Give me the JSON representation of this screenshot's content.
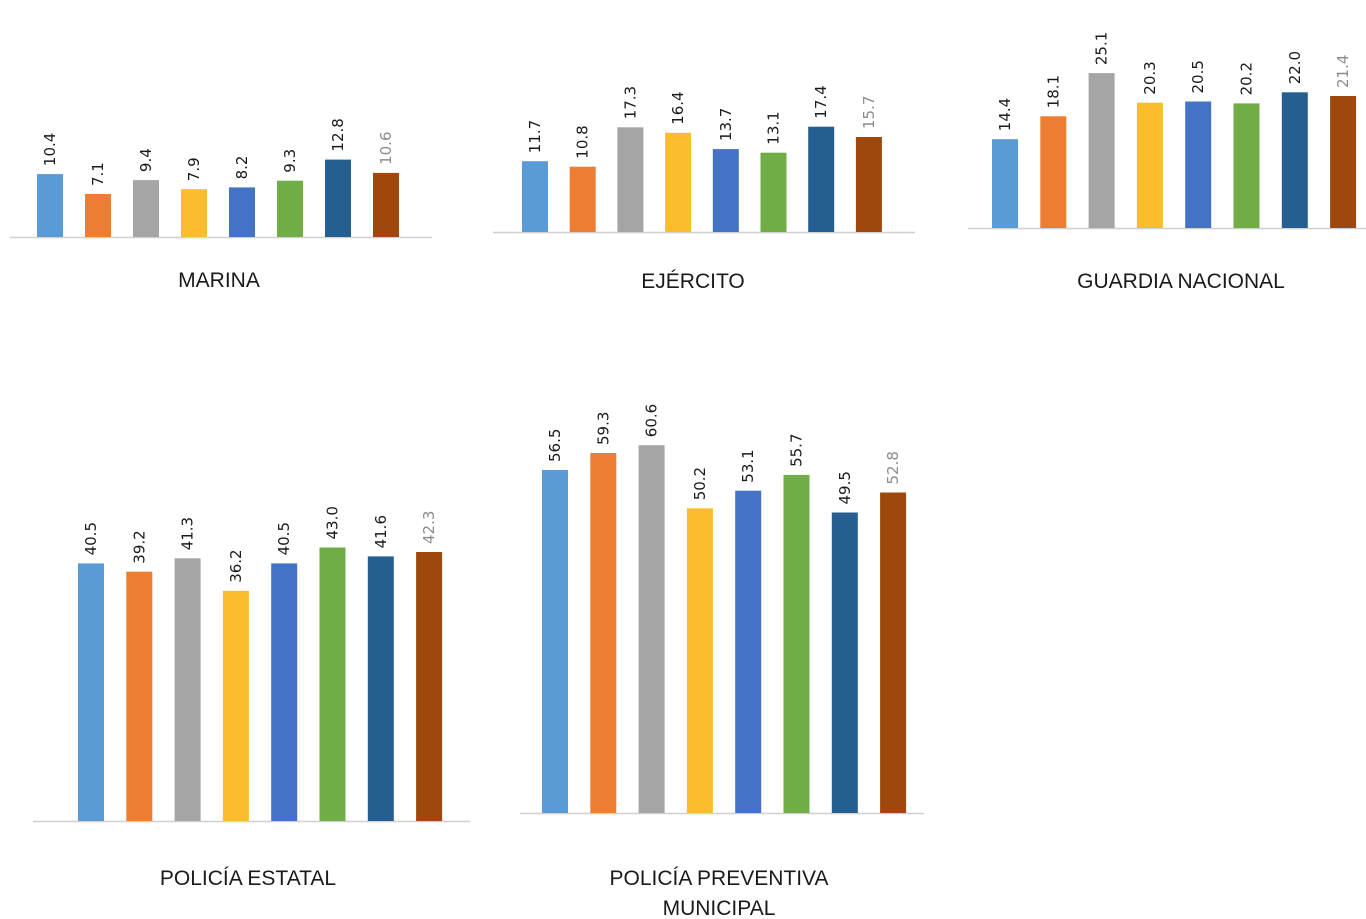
{
  "colors": {
    "series": [
      "#5b9bd5",
      "#ed7d31",
      "#a5a5a5",
      "#fbbd2d",
      "#4472c4",
      "#70ad47",
      "#255e91",
      "#9e480e"
    ],
    "label_default": "#1a1a1a",
    "label_last": "#8c8c8c",
    "axis": "#d0d0d0"
  },
  "chart_data": [
    {
      "type": "bar",
      "title": "MARINA",
      "values": [
        10.4,
        7.1,
        9.4,
        7.9,
        8.2,
        9.3,
        12.8,
        10.6
      ],
      "labels": [
        "10.4",
        "7.1",
        "9.4",
        "7.9",
        "8.2",
        "9.3",
        "12.8",
        "10.6"
      ]
    },
    {
      "type": "bar",
      "title": "EJÉRCITO",
      "values": [
        11.7,
        10.8,
        17.3,
        16.4,
        13.7,
        13.1,
        17.4,
        15.7
      ],
      "labels": [
        "11.7",
        "10.8",
        "17.3",
        "16.4",
        "13.7",
        "13.1",
        "17.4",
        "15.7"
      ]
    },
    {
      "type": "bar",
      "title": "GUARDIA NACIONAL",
      "values": [
        14.4,
        18.1,
        25.1,
        20.3,
        20.5,
        20.2,
        22.0,
        21.4
      ],
      "labels": [
        "14.4",
        "18.1",
        "25.1",
        "20.3",
        "20.5",
        "20.2",
        "22.0",
        "21.4"
      ]
    },
    {
      "type": "bar",
      "title": "POLICÍA ESTATAL",
      "values": [
        40.5,
        39.2,
        41.3,
        36.2,
        40.5,
        43.0,
        41.6,
        42.3
      ],
      "labels": [
        "40.5",
        "39.2",
        "41.3",
        "36.2",
        "40.5",
        "43.0",
        "41.6",
        "42.3"
      ]
    },
    {
      "type": "bar",
      "title": "POLICÍA PREVENTIVA",
      "title_line2": "MUNICIPAL",
      "values": [
        56.5,
        59.3,
        60.6,
        50.2,
        53.1,
        55.7,
        49.5,
        52.8
      ],
      "labels": [
        "56.5",
        "59.3",
        "60.6",
        "50.2",
        "53.1",
        "55.7",
        "49.5",
        "52.8"
      ]
    }
  ]
}
